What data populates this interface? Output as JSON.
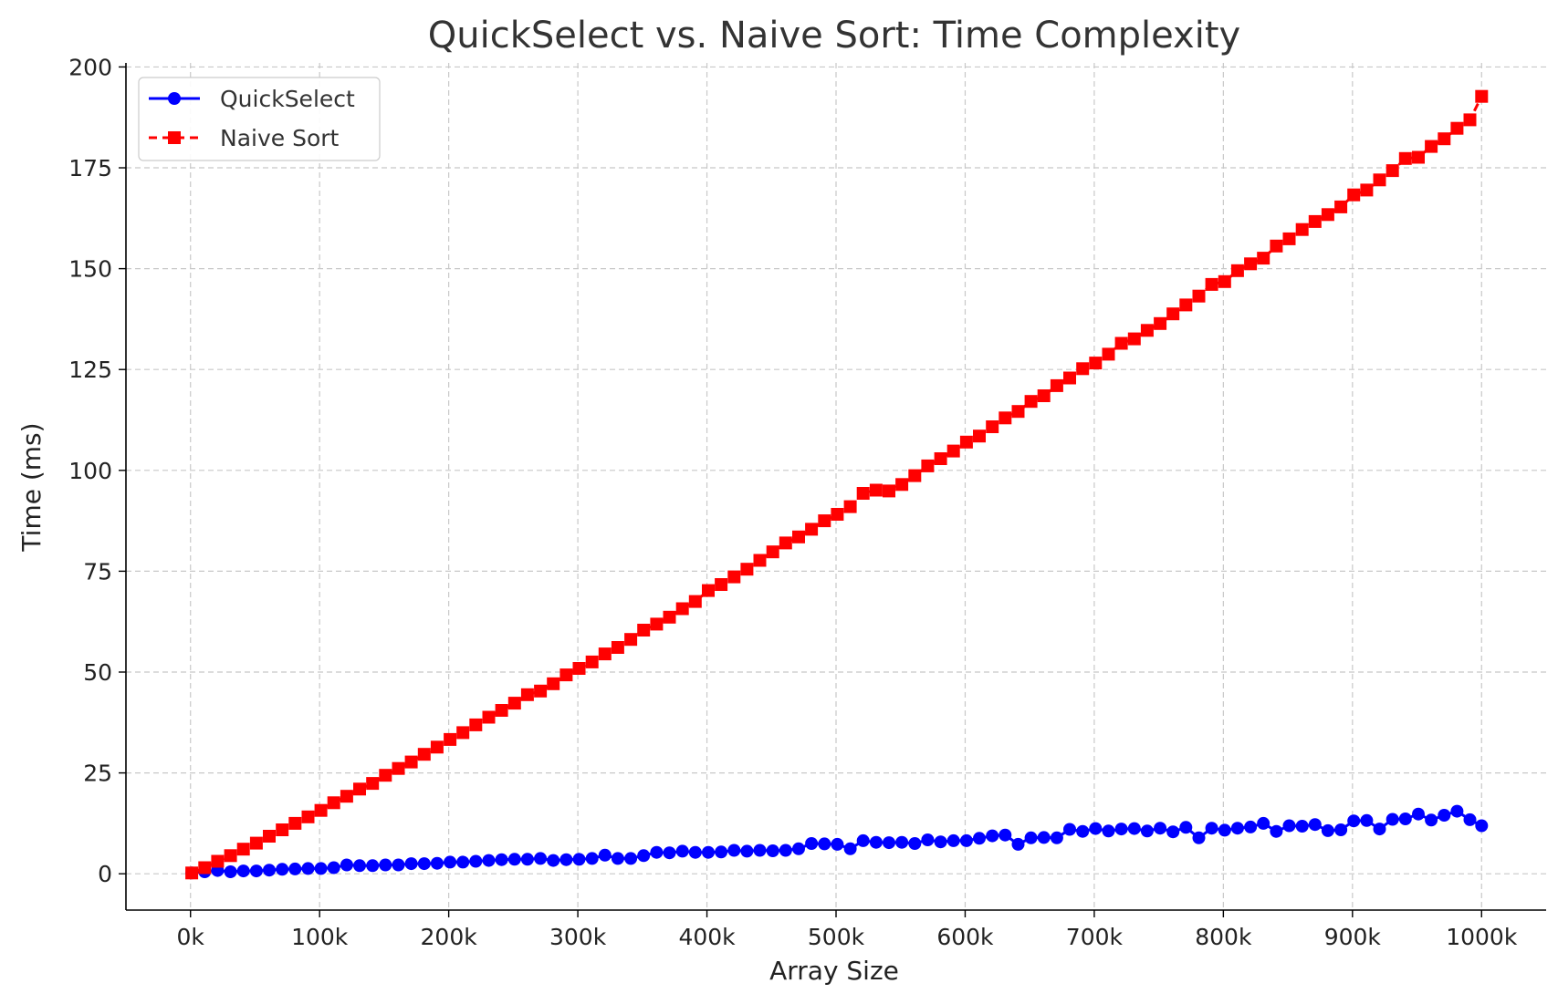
{
  "chart_data": {
    "type": "line",
    "title": "QuickSelect vs. Naive Sort: Time Complexity",
    "xlabel": "Array Size",
    "ylabel": "Time (ms)",
    "xlim": [
      -50000,
      1050000
    ],
    "ylim": [
      -9,
      201
    ],
    "x_ticks": [
      0,
      100000,
      200000,
      300000,
      400000,
      500000,
      600000,
      700000,
      800000,
      900000,
      1000000
    ],
    "x_tick_labels": [
      "0k",
      "100k",
      "200k",
      "300k",
      "400k",
      "500k",
      "600k",
      "700k",
      "800k",
      "900k",
      "1000k"
    ],
    "y_ticks": [
      0,
      25,
      50,
      75,
      100,
      125,
      150,
      175,
      200
    ],
    "y_tick_labels": [
      "0",
      "25",
      "50",
      "75",
      "100",
      "125",
      "150",
      "175",
      "200"
    ],
    "grid": true,
    "legend_position": "top-left",
    "x": [
      1000,
      11000,
      21000,
      31000,
      41000,
      51000,
      61000,
      71000,
      81000,
      91000,
      101000,
      111000,
      121000,
      131000,
      141000,
      151000,
      161000,
      171000,
      181000,
      191000,
      201000,
      211000,
      221000,
      231000,
      241000,
      251000,
      261000,
      271000,
      281000,
      291000,
      301000,
      311000,
      321000,
      331000,
      341000,
      351000,
      361000,
      371000,
      381000,
      391000,
      401000,
      411000,
      421000,
      431000,
      441000,
      451000,
      461000,
      471000,
      481000,
      491000,
      501000,
      511000,
      521000,
      531000,
      541000,
      551000,
      561000,
      571000,
      581000,
      591000,
      601000,
      611000,
      621000,
      631000,
      641000,
      651000,
      661000,
      671000,
      681000,
      691000,
      701000,
      711000,
      721000,
      731000,
      741000,
      751000,
      761000,
      771000,
      781000,
      791000,
      801000,
      811000,
      821000,
      831000,
      841000,
      851000,
      861000,
      871000,
      881000,
      891000,
      901000,
      911000,
      921000,
      931000,
      941000,
      951000,
      961000,
      971000,
      981000,
      991000,
      1000000
    ],
    "series": [
      {
        "name": "QuickSelect",
        "color": "#0000ff",
        "marker": "circle",
        "line_style": "solid",
        "values": [
          0.2,
          0.5,
          0.8,
          0.5,
          0.7,
          0.7,
          0.9,
          1.1,
          1.2,
          1.3,
          1.3,
          1.5,
          2.2,
          2.0,
          2.0,
          2.2,
          2.2,
          2.5,
          2.5,
          2.6,
          2.9,
          2.9,
          3.1,
          3.3,
          3.5,
          3.6,
          3.6,
          3.8,
          3.3,
          3.5,
          3.6,
          3.8,
          4.6,
          3.8,
          3.8,
          4.5,
          5.3,
          5.2,
          5.6,
          5.3,
          5.3,
          5.4,
          5.8,
          5.6,
          5.8,
          5.7,
          5.8,
          6.2,
          7.5,
          7.4,
          7.3,
          6.2,
          8.2,
          7.8,
          7.7,
          7.8,
          7.5,
          8.4,
          7.9,
          8.2,
          8.2,
          8.8,
          9.4,
          9.6,
          7.3,
          8.9,
          9.0,
          8.9,
          11.0,
          10.5,
          11.2,
          10.6,
          11.1,
          11.2,
          10.6,
          11.3,
          10.4,
          11.5,
          8.9,
          11.3,
          10.8,
          11.3,
          11.6,
          12.5,
          10.5,
          11.9,
          11.8,
          12.2,
          10.7,
          10.9,
          13.1,
          13.2,
          11.1,
          13.5,
          13.6,
          14.8,
          13.3,
          14.5,
          15.5,
          13.4,
          11.9
        ]
      },
      {
        "name": "Naive Sort",
        "color": "#ff0000",
        "marker": "square",
        "line_style": "dashed",
        "values": [
          0.2,
          1.5,
          3.1,
          4.5,
          6.1,
          7.6,
          9.3,
          10.9,
          12.5,
          14.1,
          15.7,
          17.6,
          19.2,
          21.0,
          22.4,
          24.4,
          26.1,
          27.7,
          29.6,
          31.4,
          33.3,
          35.0,
          36.9,
          38.8,
          40.5,
          42.3,
          44.4,
          45.3,
          47.1,
          49.3,
          50.9,
          52.5,
          54.5,
          56.1,
          58.1,
          60.4,
          61.9,
          63.6,
          65.7,
          67.5,
          70.2,
          71.7,
          73.6,
          75.5,
          77.7,
          79.8,
          82.0,
          83.5,
          85.4,
          87.5,
          89.1,
          91.0,
          94.3,
          95.1,
          94.9,
          96.5,
          98.7,
          101.1,
          102.9,
          104.8,
          107.0,
          108.5,
          110.8,
          113.0,
          114.6,
          117.1,
          118.5,
          121.0,
          122.9,
          125.2,
          126.6,
          128.8,
          131.5,
          132.6,
          134.7,
          136.4,
          138.8,
          141.0,
          143.2,
          146.1,
          146.8,
          149.5,
          151.2,
          152.6,
          155.6,
          157.4,
          159.7,
          161.7,
          163.4,
          165.3,
          168.3,
          169.5,
          172.0,
          174.3,
          177.3,
          177.6,
          180.3,
          182.2,
          184.8,
          186.9,
          192.7
        ]
      }
    ]
  }
}
